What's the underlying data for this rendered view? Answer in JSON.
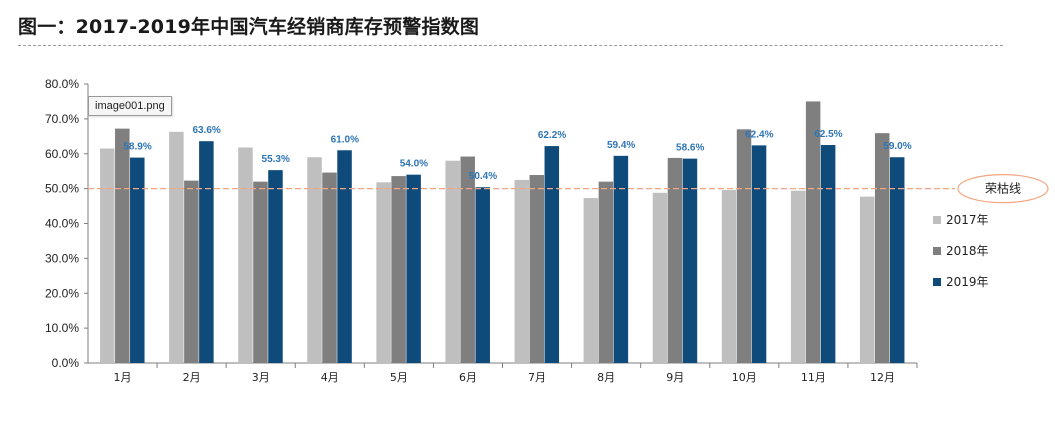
{
  "title": "图一：2017-2019年中国汽车经销商库存预警指数图",
  "tooltip": "image001.png",
  "chart_data": {
    "type": "bar",
    "categories": [
      "1月",
      "2月",
      "3月",
      "4月",
      "5月",
      "6月",
      "7月",
      "8月",
      "9月",
      "10月",
      "11月",
      "12月"
    ],
    "series": [
      {
        "name": "2017年",
        "color": "#bfbfbf",
        "values": [
          61.5,
          66.3,
          61.8,
          59.0,
          51.8,
          58.0,
          52.5,
          47.3,
          48.8,
          49.6,
          49.4,
          47.7
        ]
      },
      {
        "name": "2018年",
        "color": "#7f7f7f",
        "values": [
          67.2,
          52.3,
          52.0,
          54.6,
          53.6,
          59.2,
          53.9,
          52.0,
          58.8,
          67.0,
          75.0,
          65.9
        ]
      },
      {
        "name": "2019年",
        "color": "#0e4a7a",
        "values": [
          58.9,
          63.6,
          55.3,
          61.0,
          54.0,
          50.4,
          62.2,
          59.4,
          58.6,
          62.4,
          62.5,
          59.0
        ]
      }
    ],
    "data_labels": [
      "58.9%",
      "63.6%",
      "55.3%",
      "61.0%",
      "54.0%",
      "50.4%",
      "62.2%",
      "59.4%",
      "58.6%",
      "62.4%",
      "62.5%",
      "59.0%"
    ],
    "data_label_color": "#2e75b6",
    "y_ticks": [
      "0.0%",
      "10.0%",
      "20.0%",
      "30.0%",
      "40.0%",
      "50.0%",
      "60.0%",
      "70.0%",
      "80.0%"
    ],
    "ylim": [
      0,
      80
    ],
    "reference_line": {
      "value": 50,
      "label": "荣枯线",
      "color": "#f4a582"
    },
    "legend_position": "right",
    "grid": false
  }
}
